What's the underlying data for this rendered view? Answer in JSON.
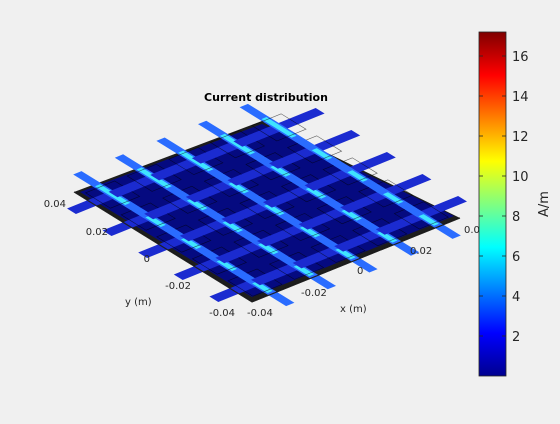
{
  "chart_data": {
    "type": "heatmap",
    "title": "Current distribution",
    "xlabel": "x (m)",
    "ylabel": "y (m)",
    "xlim": [
      -0.04,
      0.04
    ],
    "ylim": [
      -0.04,
      0.04
    ],
    "x_ticks": [
      "-0.04",
      "-0.02",
      "0",
      "0.02",
      "0.04"
    ],
    "y_ticks": [
      "-0.04",
      "-0.02",
      "0",
      "0.02",
      "0.04"
    ],
    "colormap": "jet",
    "colorbar": {
      "label": "A/m",
      "ticks": [
        "2",
        "4",
        "6",
        "8",
        "10",
        "12",
        "14",
        "16"
      ],
      "tick_values": [
        2,
        4,
        6,
        8,
        10,
        12,
        14,
        16
      ],
      "range": [
        0,
        17.2
      ]
    },
    "view": "3-D perspective of a 5×5 array of crossed strip elements on a square ground plane",
    "grid": false
  }
}
